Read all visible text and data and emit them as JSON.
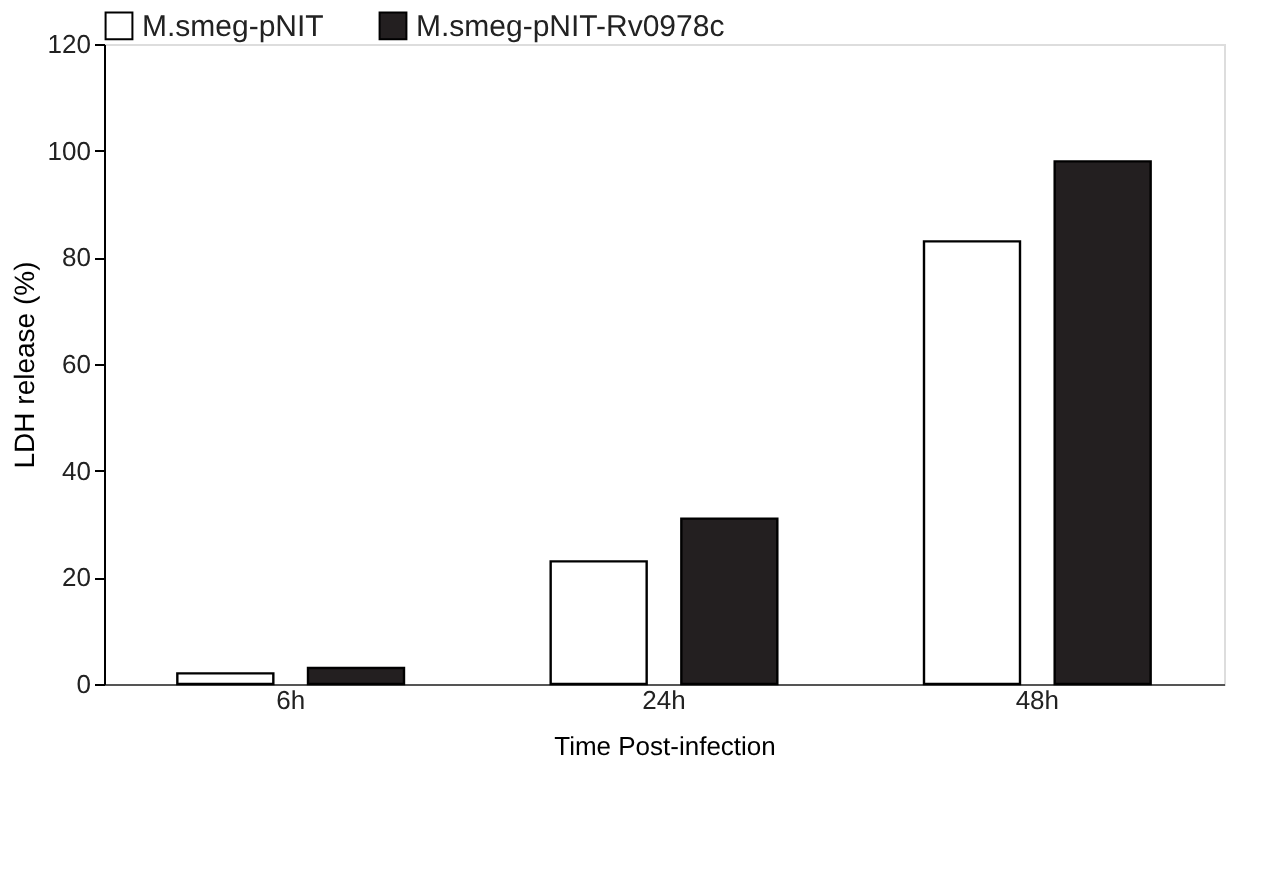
{
  "chart_data": {
    "type": "bar",
    "xlabel": "Time Post-infection",
    "ylabel": "LDH release (%)",
    "categories": [
      "6h",
      "24h",
      "48h"
    ],
    "series": [
      {
        "name": "M.smeg-pNIT",
        "color": "#ffffff",
        "values": [
          2,
          23,
          83
        ]
      },
      {
        "name": "M.smeg-pNIT-Rv0978c",
        "color": "#231f20",
        "values": [
          3,
          31,
          98
        ]
      }
    ],
    "ylim": [
      0,
      120
    ],
    "yticks": [
      0,
      20,
      40,
      60,
      80,
      100,
      120
    ],
    "grid": false,
    "legend": "top"
  }
}
